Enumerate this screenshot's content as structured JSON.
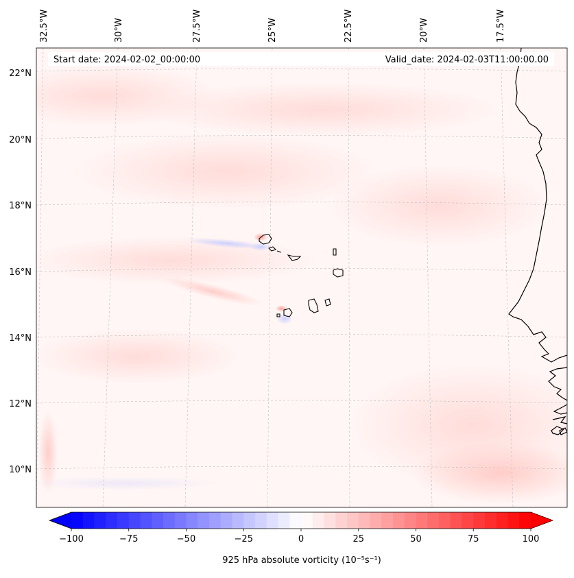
{
  "map": {
    "start_label": "Start date: 2024-02-02_00:00:00",
    "valid_label": "Valid_date: 2024-02-03T11:00:00.00",
    "variable": "925 hPa absolute vorticity",
    "units_note": "(10⁻⁵s⁻¹)",
    "lon_labels": [
      "32.5°W",
      "30°W",
      "27.5°W",
      "25°W",
      "22.5°W",
      "20°W",
      "17.5°W"
    ],
    "lat_labels": [
      "22°N",
      "20°N",
      "18°N",
      "16°N",
      "14°N",
      "12°N",
      "10°N"
    ],
    "colors": {
      "neg": "#0000ff",
      "zero": "#ffffff",
      "pos": "#ff0000",
      "field_bg": "#fff6f5"
    }
  },
  "colorbar": {
    "min": -100,
    "max": 100,
    "levels": 40,
    "tick_values": [
      -100,
      -75,
      -50,
      -25,
      0,
      25,
      50,
      75,
      100
    ],
    "tick_labels": [
      "−100",
      "−75",
      "−50",
      "−25",
      "0",
      "25",
      "50",
      "75",
      "100"
    ]
  }
}
